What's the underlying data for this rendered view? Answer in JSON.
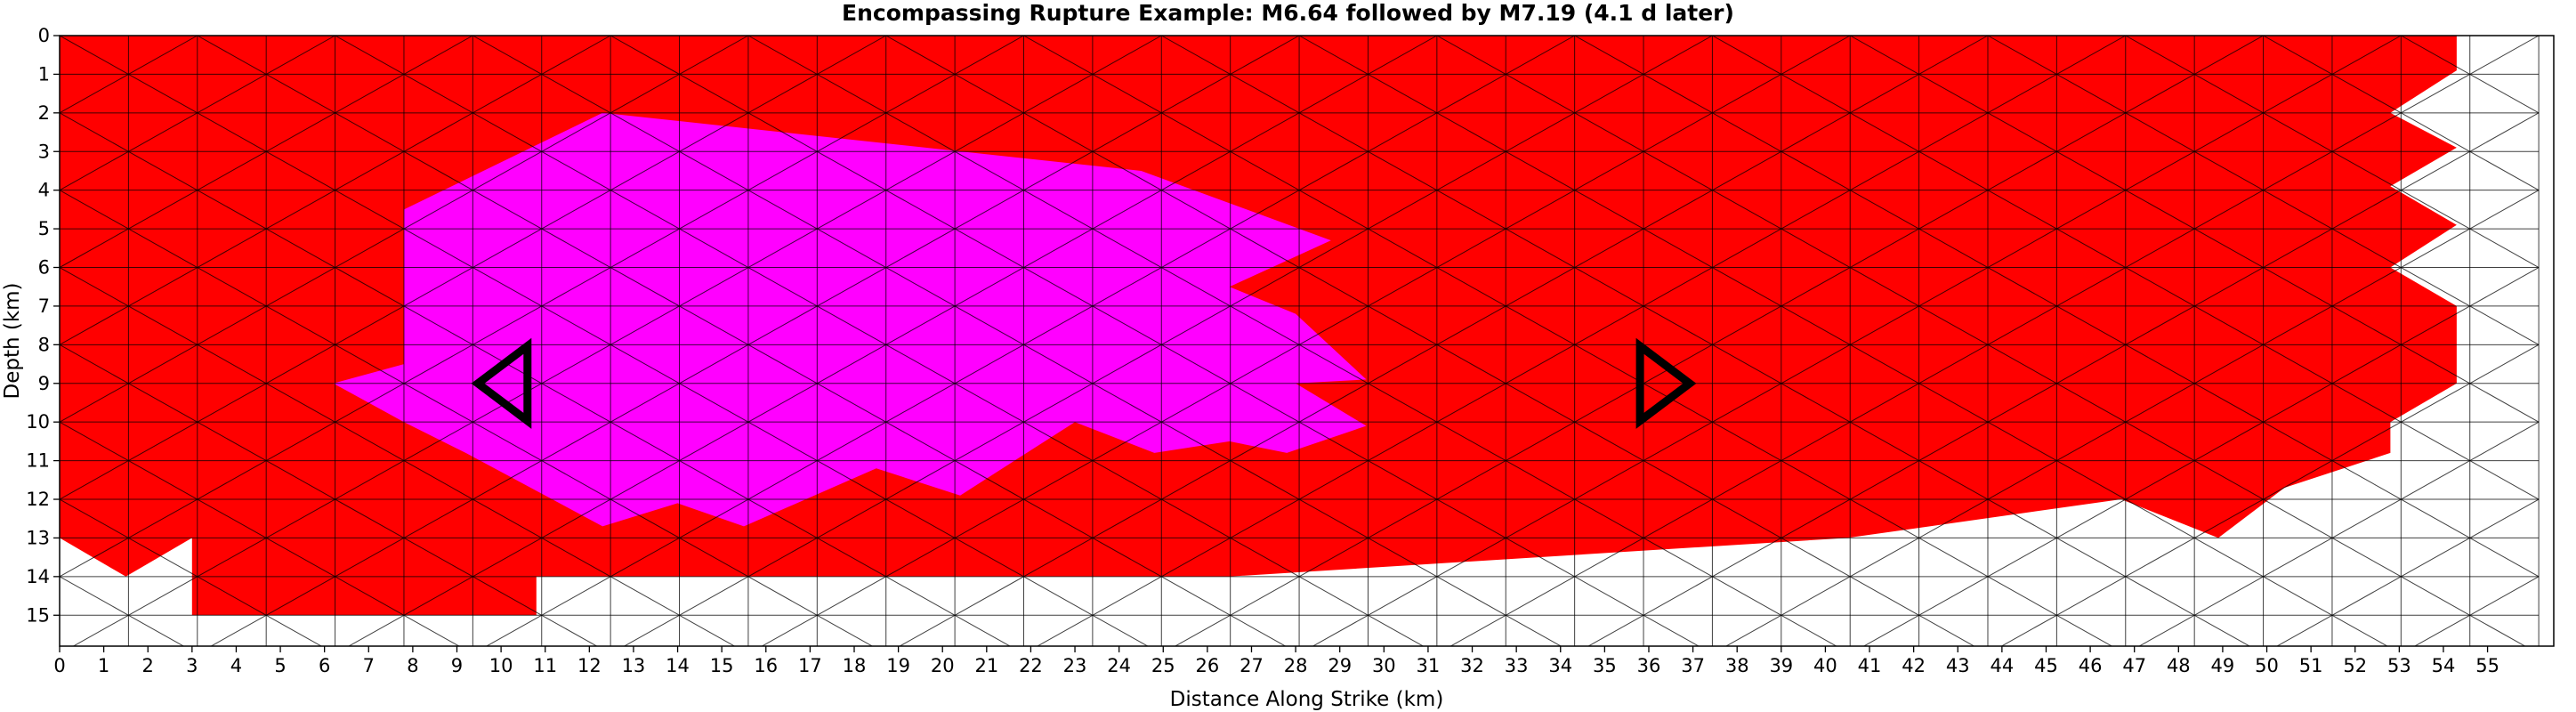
{
  "chart_data": {
    "type": "heatmap",
    "subtype": "triangular-mesh fault rupture map",
    "title": "Encompassing Rupture Example: M6.64 followed by M7.19 (4.1 d later)",
    "xlabel": "Distance Along Strike (km)",
    "ylabel": "Depth (km)",
    "xlim": [
      0,
      56.5
    ],
    "ylim": [
      15.8,
      0
    ],
    "xticks": [
      0,
      1,
      2,
      3,
      4,
      5,
      6,
      7,
      8,
      9,
      10,
      11,
      12,
      13,
      14,
      15,
      16,
      17,
      18,
      19,
      20,
      21,
      22,
      23,
      24,
      25,
      26,
      27,
      28,
      29,
      30,
      31,
      32,
      33,
      34,
      35,
      36,
      37,
      38,
      39,
      40,
      41,
      42,
      43,
      44,
      45,
      46,
      47,
      48,
      49,
      50,
      51,
      52,
      53,
      54,
      55
    ],
    "yticks": [
      0,
      1,
      2,
      3,
      4,
      5,
      6,
      7,
      8,
      9,
      10,
      11,
      12,
      13,
      14,
      15
    ],
    "grid": false,
    "mesh": {
      "rows": 16,
      "row_height_km": 1,
      "columns": 36,
      "column_width_km": 1.56
    },
    "colors": {
      "background": "#ffffff",
      "first_rupture_M6_64": "#ff00ff",
      "second_rupture_M7_19": "#ff0000",
      "mesh_edge": "#000000",
      "unruptured_edge": "#808080",
      "hypocenter_marker": "#000000"
    },
    "ruptures": [
      {
        "event": "M6.64",
        "color": "#ff00ff",
        "outline_km": [
          [
            7.8,
            4.5
          ],
          [
            12.3,
            2
          ],
          [
            24.5,
            3.5
          ],
          [
            28.8,
            5.3
          ],
          [
            26.5,
            6.5
          ],
          [
            28,
            7.2
          ],
          [
            29.6,
            8.9
          ],
          [
            28,
            9
          ],
          [
            29.6,
            10.1
          ],
          [
            27.8,
            10.8
          ],
          [
            26.5,
            10.5
          ],
          [
            24.8,
            10.8
          ],
          [
            23,
            10
          ],
          [
            20.4,
            11.9
          ],
          [
            18.5,
            11.2
          ],
          [
            15.5,
            12.7
          ],
          [
            14,
            12.1
          ],
          [
            12.3,
            12.7
          ],
          [
            9.2,
            10.8
          ],
          [
            7.8,
            10
          ],
          [
            6.2,
            9
          ],
          [
            7.8,
            8.5
          ]
        ]
      },
      {
        "event": "M7.19",
        "color": "#ff0000",
        "outline_km": [
          [
            0,
            0
          ],
          [
            54.3,
            0
          ],
          [
            54.3,
            0.9
          ],
          [
            52.8,
            2
          ],
          [
            54.3,
            2.9
          ],
          [
            52.8,
            3.9
          ],
          [
            54.3,
            4.9
          ],
          [
            52.8,
            6
          ],
          [
            54.3,
            7
          ],
          [
            54.3,
            9
          ],
          [
            52.8,
            10
          ],
          [
            52.8,
            10.8
          ],
          [
            50.4,
            11.7
          ],
          [
            48.9,
            13
          ],
          [
            46.7,
            12
          ],
          [
            40.5,
            13
          ],
          [
            26.5,
            14
          ],
          [
            20,
            14
          ],
          [
            12.3,
            14
          ],
          [
            10.8,
            14
          ],
          [
            10.8,
            15
          ],
          [
            3,
            15
          ],
          [
            3,
            13
          ],
          [
            1.5,
            14
          ],
          [
            0,
            13
          ]
        ]
      }
    ],
    "hypocenters": [
      {
        "event": "M6.64",
        "marker": "triangle-left",
        "x": 10.2,
        "y": 9
      },
      {
        "event": "M7.19",
        "marker": "triangle-right",
        "x": 36.2,
        "y": 9
      }
    ]
  }
}
